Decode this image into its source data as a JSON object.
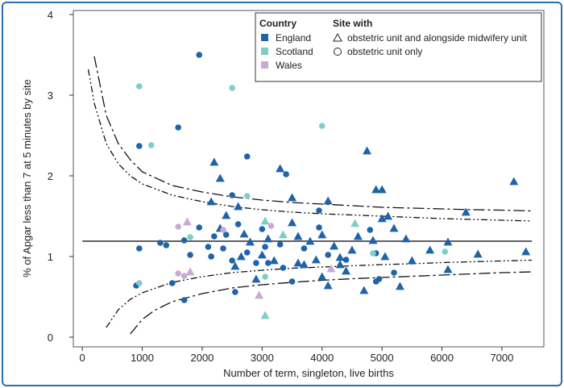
{
  "colors": {
    "frame": "#2a6db3",
    "England": "#1f63a8",
    "Scotland": "#7fcdc8",
    "Wales": "#c9a9d6"
  },
  "chart_data": {
    "type": "scatter",
    "xlabel": "Number of term, singleton, live births",
    "ylabel": "% of Apgar less than 7 at 5 minutes by site",
    "xlim": [
      -150,
      7700
    ],
    "ylim": [
      -0.12,
      4.05
    ],
    "x_ticks": [
      0,
      1000,
      2000,
      3000,
      4000,
      5000,
      6000,
      7000
    ],
    "y_ticks": [
      0,
      1,
      2,
      3,
      4
    ],
    "mean_line": 1.19,
    "legend": {
      "country_title": "Country",
      "countries": [
        "England",
        "Scotland",
        "Wales"
      ],
      "site_title": "Site with",
      "sites": [
        {
          "marker": "triangle",
          "label": "obstetric unit and alongside midwifery unit"
        },
        {
          "marker": "circle",
          "label": "obstetric unit only"
        }
      ]
    },
    "funnel": {
      "outer_upper": [
        [
          200,
          3.48
        ],
        [
          400,
          2.75
        ],
        [
          600,
          2.4
        ],
        [
          800,
          2.2
        ],
        [
          1000,
          2.05
        ],
        [
          1500,
          1.88
        ],
        [
          2000,
          1.8
        ],
        [
          2500,
          1.74
        ],
        [
          3000,
          1.7
        ],
        [
          3500,
          1.67
        ],
        [
          4000,
          1.65
        ],
        [
          4500,
          1.63
        ],
        [
          5000,
          1.61
        ],
        [
          5500,
          1.6
        ],
        [
          6000,
          1.59
        ],
        [
          6500,
          1.58
        ],
        [
          7000,
          1.575
        ],
        [
          7500,
          1.565
        ]
      ],
      "inner_upper": [
        [
          100,
          3.32
        ],
        [
          200,
          2.9
        ],
        [
          400,
          2.4
        ],
        [
          600,
          2.15
        ],
        [
          800,
          2.0
        ],
        [
          1000,
          1.9
        ],
        [
          1500,
          1.76
        ],
        [
          2000,
          1.68
        ],
        [
          2500,
          1.62
        ],
        [
          3000,
          1.58
        ],
        [
          3500,
          1.55
        ],
        [
          4000,
          1.53
        ],
        [
          4500,
          1.515
        ],
        [
          5000,
          1.5
        ],
        [
          5500,
          1.485
        ],
        [
          6000,
          1.47
        ],
        [
          6500,
          1.46
        ],
        [
          7000,
          1.45
        ],
        [
          7500,
          1.44
        ]
      ],
      "inner_lower": [
        [
          400,
          0.12
        ],
        [
          600,
          0.34
        ],
        [
          800,
          0.47
        ],
        [
          1000,
          0.55
        ],
        [
          1500,
          0.68
        ],
        [
          2000,
          0.75
        ],
        [
          2500,
          0.8
        ],
        [
          3000,
          0.83
        ],
        [
          3500,
          0.855
        ],
        [
          4000,
          0.87
        ],
        [
          4500,
          0.885
        ],
        [
          5000,
          0.9
        ],
        [
          5500,
          0.91
        ],
        [
          6000,
          0.925
        ],
        [
          6500,
          0.935
        ],
        [
          7000,
          0.945
        ],
        [
          7500,
          0.955
        ]
      ],
      "outer_lower": [
        [
          800,
          0.04
        ],
        [
          1000,
          0.22
        ],
        [
          1200,
          0.33
        ],
        [
          1500,
          0.44
        ],
        [
          2000,
          0.54
        ],
        [
          2500,
          0.61
        ],
        [
          3000,
          0.65
        ],
        [
          3500,
          0.68
        ],
        [
          4000,
          0.705
        ],
        [
          4500,
          0.725
        ],
        [
          5000,
          0.74
        ],
        [
          5500,
          0.755
        ],
        [
          6000,
          0.77
        ],
        [
          6500,
          0.785
        ],
        [
          7000,
          0.8
        ],
        [
          7500,
          0.81
        ]
      ]
    },
    "series": [
      {
        "name": "England",
        "points": [
          {
            "x": 950,
            "y": 2.37,
            "m": "c"
          },
          {
            "x": 950,
            "y": 1.1,
            "m": "c"
          },
          {
            "x": 900,
            "y": 0.64,
            "m": "c"
          },
          {
            "x": 1300,
            "y": 1.17,
            "m": "c"
          },
          {
            "x": 1400,
            "y": 1.14,
            "m": "c"
          },
          {
            "x": 1500,
            "y": 0.67,
            "m": "c"
          },
          {
            "x": 1600,
            "y": 2.6,
            "m": "c"
          },
          {
            "x": 1700,
            "y": 1.2,
            "m": "c"
          },
          {
            "x": 1700,
            "y": 0.46,
            "m": "c"
          },
          {
            "x": 1800,
            "y": 1.02,
            "m": "c"
          },
          {
            "x": 1950,
            "y": 3.5,
            "m": "c"
          },
          {
            "x": 1950,
            "y": 1.36,
            "m": "c"
          },
          {
            "x": 2100,
            "y": 1.12,
            "m": "c"
          },
          {
            "x": 2150,
            "y": 1.0,
            "m": "c"
          },
          {
            "x": 2200,
            "y": 1.25,
            "m": "c"
          },
          {
            "x": 2350,
            "y": 1.1,
            "m": "c"
          },
          {
            "x": 2400,
            "y": 1.27,
            "m": "c"
          },
          {
            "x": 2500,
            "y": 1.76,
            "m": "c"
          },
          {
            "x": 2500,
            "y": 0.95,
            "m": "c"
          },
          {
            "x": 2550,
            "y": 0.56,
            "m": "c"
          },
          {
            "x": 2600,
            "y": 1.4,
            "m": "c"
          },
          {
            "x": 2750,
            "y": 2.24,
            "m": "c"
          },
          {
            "x": 2750,
            "y": 1.05,
            "m": "c"
          },
          {
            "x": 2900,
            "y": 0.92,
            "m": "c"
          },
          {
            "x": 3000,
            "y": 1.34,
            "m": "c"
          },
          {
            "x": 3050,
            "y": 1.12,
            "m": "c"
          },
          {
            "x": 3100,
            "y": 0.92,
            "m": "c"
          },
          {
            "x": 3300,
            "y": 1.15,
            "m": "c"
          },
          {
            "x": 3350,
            "y": 0.86,
            "m": "c"
          },
          {
            "x": 3400,
            "y": 2.02,
            "m": "c"
          },
          {
            "x": 3500,
            "y": 0.69,
            "m": "c"
          },
          {
            "x": 3700,
            "y": 1.1,
            "m": "c"
          },
          {
            "x": 3950,
            "y": 1.57,
            "m": "c"
          },
          {
            "x": 3950,
            "y": 1.36,
            "m": "c"
          },
          {
            "x": 4100,
            "y": 1.02,
            "m": "c"
          },
          {
            "x": 4400,
            "y": 0.96,
            "m": "c"
          },
          {
            "x": 4800,
            "y": 1.33,
            "m": "c"
          },
          {
            "x": 4900,
            "y": 1.04,
            "m": "c"
          },
          {
            "x": 4950,
            "y": 0.72,
            "m": "c"
          },
          {
            "x": 4900,
            "y": 0.69,
            "m": "c"
          },
          {
            "x": 5200,
            "y": 0.8,
            "m": "c"
          },
          {
            "x": 2200,
            "y": 2.17,
            "m": "t"
          },
          {
            "x": 2300,
            "y": 1.97,
            "m": "t"
          },
          {
            "x": 2150,
            "y": 1.68,
            "m": "t"
          },
          {
            "x": 2400,
            "y": 1.51,
            "m": "t"
          },
          {
            "x": 2300,
            "y": 1.35,
            "m": "t"
          },
          {
            "x": 2600,
            "y": 1.62,
            "m": "t"
          },
          {
            "x": 2700,
            "y": 1.28,
            "m": "t"
          },
          {
            "x": 2650,
            "y": 1.0,
            "m": "t"
          },
          {
            "x": 2550,
            "y": 0.88,
            "m": "t"
          },
          {
            "x": 2800,
            "y": 1.18,
            "m": "t"
          },
          {
            "x": 2900,
            "y": 0.72,
            "m": "t"
          },
          {
            "x": 3000,
            "y": 1.02,
            "m": "t"
          },
          {
            "x": 3100,
            "y": 1.22,
            "m": "t"
          },
          {
            "x": 3200,
            "y": 0.95,
            "m": "t"
          },
          {
            "x": 3300,
            "y": 2.09,
            "m": "t"
          },
          {
            "x": 3500,
            "y": 1.73,
            "m": "t"
          },
          {
            "x": 3500,
            "y": 1.42,
            "m": "t"
          },
          {
            "x": 3600,
            "y": 1.25,
            "m": "t"
          },
          {
            "x": 3700,
            "y": 0.9,
            "m": "t"
          },
          {
            "x": 3800,
            "y": 1.19,
            "m": "t"
          },
          {
            "x": 3900,
            "y": 0.96,
            "m": "t"
          },
          {
            "x": 4000,
            "y": 1.27,
            "m": "t"
          },
          {
            "x": 4000,
            "y": 0.75,
            "m": "t"
          },
          {
            "x": 4100,
            "y": 1.69,
            "m": "t"
          },
          {
            "x": 4100,
            "y": 0.64,
            "m": "t"
          },
          {
            "x": 4200,
            "y": 1.13,
            "m": "t"
          },
          {
            "x": 4300,
            "y": 0.9,
            "m": "t"
          },
          {
            "x": 4400,
            "y": 0.82,
            "m": "t"
          },
          {
            "x": 4500,
            "y": 1.08,
            "m": "t"
          },
          {
            "x": 4600,
            "y": 1.25,
            "m": "t"
          },
          {
            "x": 4700,
            "y": 0.58,
            "m": "t"
          },
          {
            "x": 4750,
            "y": 2.31,
            "m": "t"
          },
          {
            "x": 4850,
            "y": 1.2,
            "m": "t"
          },
          {
            "x": 4900,
            "y": 1.83,
            "m": "t"
          },
          {
            "x": 5000,
            "y": 1.83,
            "m": "t"
          },
          {
            "x": 5000,
            "y": 1.47,
            "m": "t"
          },
          {
            "x": 5050,
            "y": 1.0,
            "m": "t"
          },
          {
            "x": 5100,
            "y": 1.5,
            "m": "t"
          },
          {
            "x": 5200,
            "y": 1.35,
            "m": "t"
          },
          {
            "x": 5300,
            "y": 0.63,
            "m": "t"
          },
          {
            "x": 5400,
            "y": 1.22,
            "m": "t"
          },
          {
            "x": 5500,
            "y": 0.95,
            "m": "t"
          },
          {
            "x": 5800,
            "y": 1.08,
            "m": "t"
          },
          {
            "x": 6100,
            "y": 1.18,
            "m": "t"
          },
          {
            "x": 6100,
            "y": 0.84,
            "m": "t"
          },
          {
            "x": 6400,
            "y": 1.55,
            "m": "t"
          },
          {
            "x": 6600,
            "y": 1.03,
            "m": "t"
          },
          {
            "x": 7200,
            "y": 1.93,
            "m": "t"
          },
          {
            "x": 7400,
            "y": 1.06,
            "m": "t"
          },
          {
            "x": 3600,
            "y": 0.92,
            "m": "t"
          },
          {
            "x": 4300,
            "y": 0.99,
            "m": "t"
          }
        ]
      },
      {
        "name": "Scotland",
        "points": [
          {
            "x": 950,
            "y": 3.11,
            "m": "c"
          },
          {
            "x": 950,
            "y": 0.67,
            "m": "c"
          },
          {
            "x": 1150,
            "y": 2.38,
            "m": "c"
          },
          {
            "x": 1800,
            "y": 1.24,
            "m": "c"
          },
          {
            "x": 2500,
            "y": 3.09,
            "m": "c"
          },
          {
            "x": 2750,
            "y": 1.75,
            "m": "c"
          },
          {
            "x": 3050,
            "y": 0.75,
            "m": "c"
          },
          {
            "x": 4000,
            "y": 2.62,
            "m": "c"
          },
          {
            "x": 4850,
            "y": 1.04,
            "m": "c"
          },
          {
            "x": 6050,
            "y": 1.06,
            "m": "c"
          },
          {
            "x": 3050,
            "y": 1.44,
            "m": "t"
          },
          {
            "x": 3050,
            "y": 0.27,
            "m": "t"
          },
          {
            "x": 3350,
            "y": 1.27,
            "m": "t"
          },
          {
            "x": 4550,
            "y": 1.41,
            "m": "t"
          }
        ]
      },
      {
        "name": "Wales",
        "points": [
          {
            "x": 1600,
            "y": 0.79,
            "m": "c"
          },
          {
            "x": 1600,
            "y": 1.37,
            "m": "c"
          },
          {
            "x": 2350,
            "y": 1.33,
            "m": "c"
          },
          {
            "x": 3150,
            "y": 1.38,
            "m": "c"
          },
          {
            "x": 1700,
            "y": 0.76,
            "m": "c"
          },
          {
            "x": 1750,
            "y": 1.43,
            "m": "t"
          },
          {
            "x": 1800,
            "y": 0.81,
            "m": "t"
          },
          {
            "x": 2950,
            "y": 0.52,
            "m": "t"
          },
          {
            "x": 4150,
            "y": 0.85,
            "m": "t"
          }
        ]
      }
    ]
  }
}
